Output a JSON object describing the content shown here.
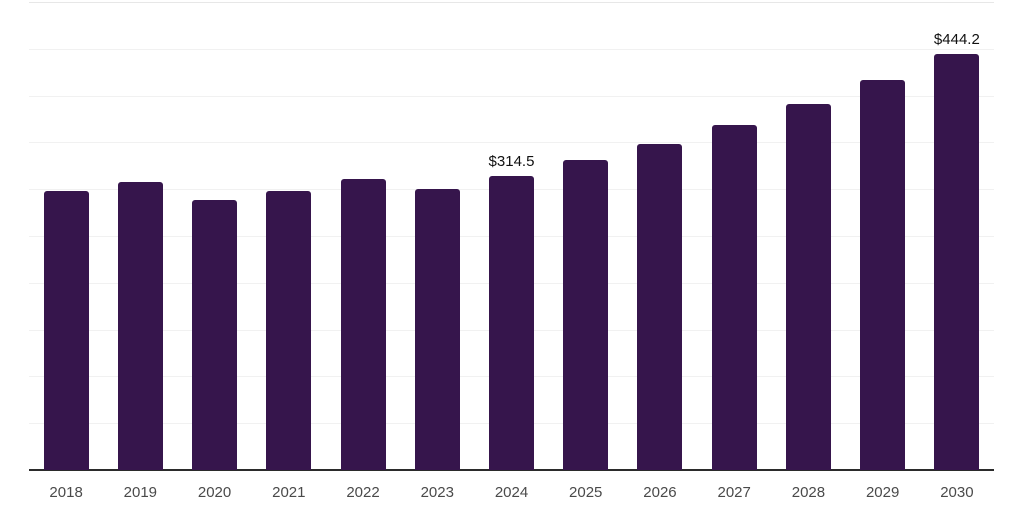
{
  "chart_data": {
    "type": "bar",
    "title": "",
    "xlabel": "",
    "ylabel": "",
    "categories": [
      "2018",
      "2019",
      "2020",
      "2021",
      "2022",
      "2023",
      "2024",
      "2025",
      "2026",
      "2027",
      "2028",
      "2029",
      "2030"
    ],
    "values": [
      298.0,
      307.5,
      288.5,
      298.5,
      311.0,
      300.0,
      314.5,
      331.5,
      348.5,
      368.5,
      390.5,
      416.5,
      444.2
    ],
    "data_labels": {
      "2024": "$314.5",
      "2030": "$444.2"
    },
    "ylim": [
      0,
      500
    ],
    "gridline_step": 50,
    "grid": true,
    "legend_position": "none",
    "colors": {
      "bar": "#36154C",
      "axis_line": "#2B2B2B",
      "gridline": "#F1F1F1",
      "top_gridline": "#E7E7E7",
      "data_label_text": "#111111",
      "tick_text": "#4A4A4A",
      "background": "#FFFFFF"
    }
  }
}
